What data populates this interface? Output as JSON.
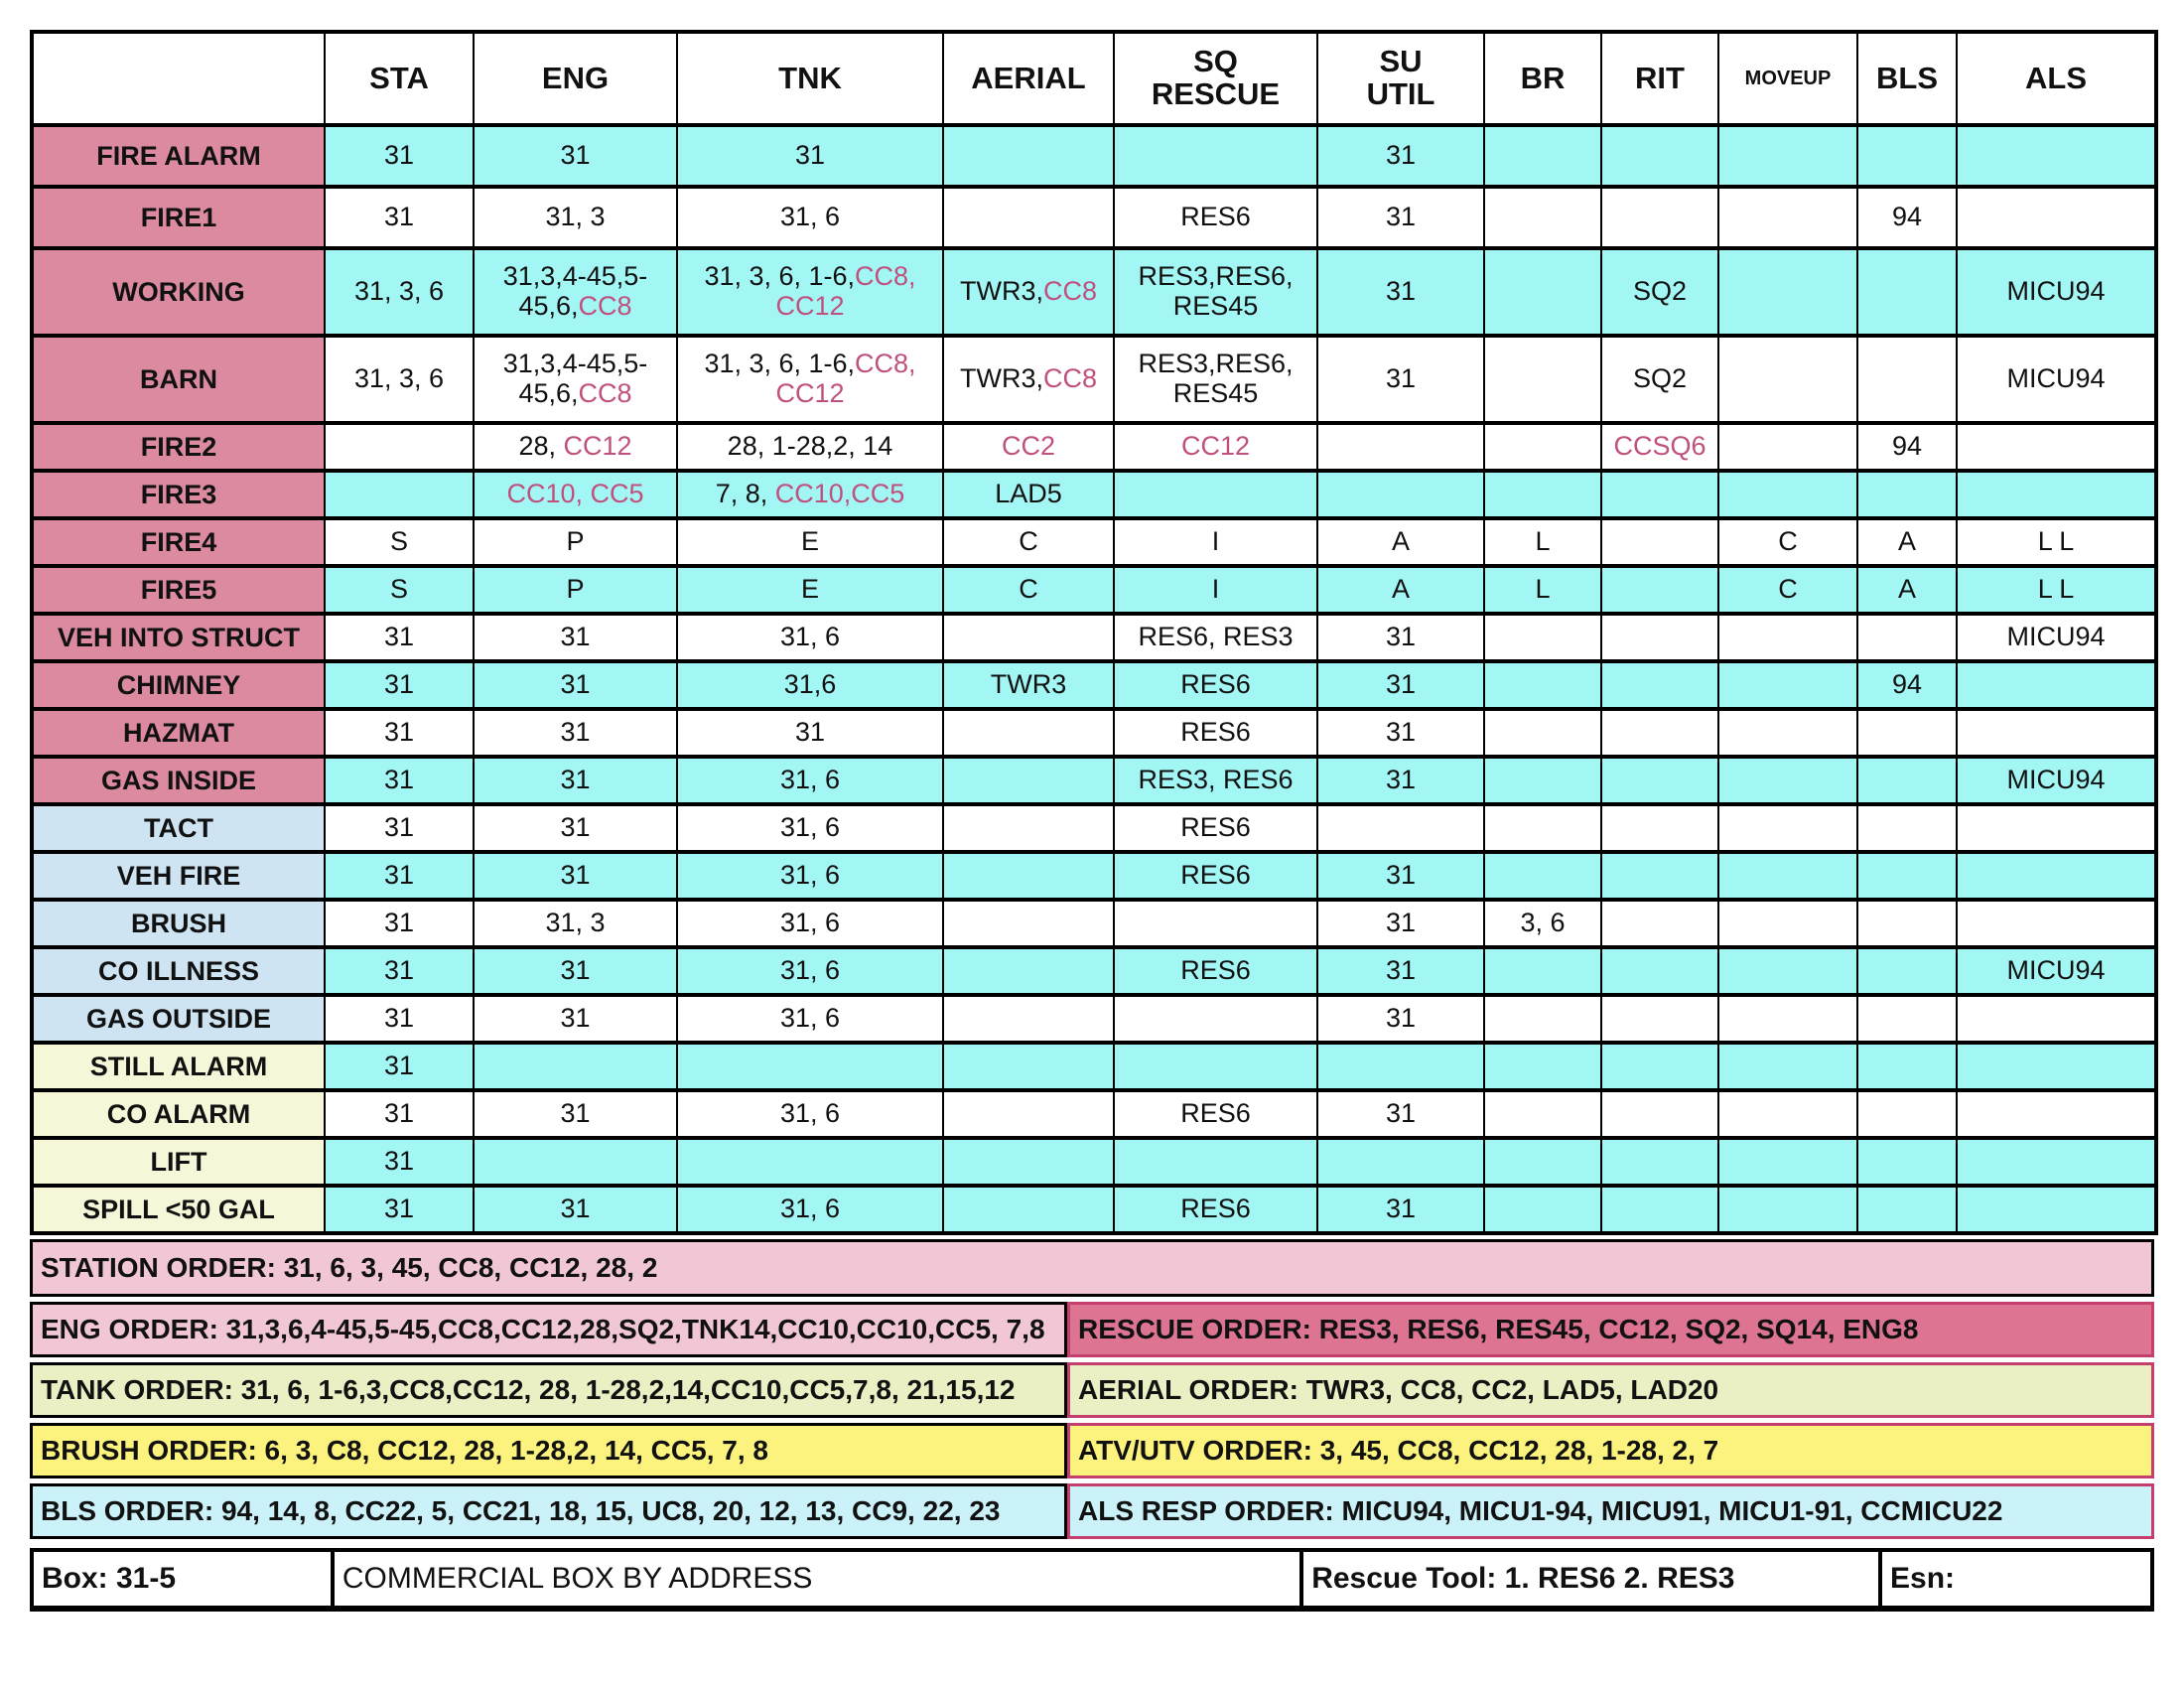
{
  "colors": {
    "cyan": "#a2f6f4",
    "white": "#ffffff",
    "pinkLabel": "#dc8aa0",
    "blueLabel": "#cfe4f3",
    "yellowLabel": "#f6f6d8",
    "pinkText": "#c0507e",
    "lightPink": "#f1c6d5",
    "darkPink": "#dc7492",
    "paleGreen": "#ebf0c4",
    "yellow": "#fbf37d",
    "paleCyan": "#ccf2f9",
    "crimsonBorder": "#c43e6e"
  },
  "table": {
    "columns": [
      {
        "id": "blank",
        "label": ""
      },
      {
        "id": "sta",
        "label": "STA"
      },
      {
        "id": "eng",
        "label": "ENG"
      },
      {
        "id": "tnk",
        "label": "TNK"
      },
      {
        "id": "aerial",
        "label": "AERIAL"
      },
      {
        "id": "sq-rescue",
        "label": "SQ\nRESCUE"
      },
      {
        "id": "su-util",
        "label": "SU\nUTIL"
      },
      {
        "id": "br",
        "label": "BR"
      },
      {
        "id": "rit",
        "label": "RIT"
      },
      {
        "id": "moveup",
        "label": "MOVEUP"
      },
      {
        "id": "bls",
        "label": "BLS"
      },
      {
        "id": "als",
        "label": "ALS"
      }
    ],
    "rows": [
      {
        "label": "FIRE ALARM",
        "labelBg": "pinkLabel",
        "bg": "cyan",
        "cells": [
          [
            [
              "31",
              0
            ]
          ],
          [
            [
              "31",
              0
            ]
          ],
          [
            [
              "31",
              0
            ]
          ],
          [],
          [],
          [
            [
              "31",
              0
            ]
          ],
          [],
          [],
          [],
          [],
          []
        ]
      },
      {
        "label": "FIRE1",
        "labelBg": "pinkLabel",
        "bg": "white",
        "cells": [
          [
            [
              "31",
              0
            ]
          ],
          [
            [
              "31, 3",
              0
            ]
          ],
          [
            [
              "31, 6",
              0
            ]
          ],
          [],
          [
            [
              "RES6",
              0
            ]
          ],
          [
            [
              "31",
              0
            ]
          ],
          [],
          [],
          [],
          [
            [
              "94",
              0
            ]
          ],
          []
        ]
      },
      {
        "label": "WORKING",
        "labelBg": "pinkLabel",
        "bg": "cyan",
        "cells": [
          [
            [
              "31, 3, 6",
              0
            ]
          ],
          [
            [
              "31,3,4-45,5-45,6,",
              0
            ],
            [
              "CC8",
              1
            ]
          ],
          [
            [
              "31, 3, 6, 1-6,",
              0
            ],
            [
              "CC8, CC12",
              1
            ]
          ],
          [
            [
              "TWR3,",
              0
            ],
            [
              "CC8",
              1
            ]
          ],
          [
            [
              "RES3,RES6, RES45",
              0
            ]
          ],
          [
            [
              "31",
              0
            ]
          ],
          [],
          [
            [
              "SQ2",
              0
            ]
          ],
          [],
          [],
          [
            [
              "MICU94",
              0
            ]
          ]
        ]
      },
      {
        "label": "BARN",
        "labelBg": "pinkLabel",
        "bg": "white",
        "cells": [
          [
            [
              "31, 3, 6",
              0
            ]
          ],
          [
            [
              "31,3,4-45,5-45,6,",
              0
            ],
            [
              "CC8",
              1
            ]
          ],
          [
            [
              "31, 3, 6, 1-6,",
              0
            ],
            [
              "CC8, CC12",
              1
            ]
          ],
          [
            [
              "TWR3,",
              0
            ],
            [
              "CC8",
              1
            ]
          ],
          [
            [
              "RES3,RES6, RES45",
              0
            ]
          ],
          [
            [
              "31",
              0
            ]
          ],
          [],
          [
            [
              "SQ2",
              0
            ]
          ],
          [],
          [],
          [
            [
              "MICU94",
              0
            ]
          ]
        ]
      },
      {
        "label": "FIRE2",
        "labelBg": "pinkLabel",
        "bg": "white",
        "cells": [
          [],
          [
            [
              "28, ",
              0
            ],
            [
              "CC12",
              1
            ]
          ],
          [
            [
              "28, 1-28,2, 14",
              0
            ]
          ],
          [
            [
              "CC2",
              1
            ]
          ],
          [
            [
              "CC12",
              1
            ]
          ],
          [],
          [],
          [
            [
              "CCSQ6",
              1
            ]
          ],
          [],
          [
            [
              "94",
              0
            ]
          ],
          []
        ]
      },
      {
        "label": "FIRE3",
        "labelBg": "pinkLabel",
        "bg": "cyan",
        "cells": [
          [],
          [
            [
              "CC10, CC5",
              1
            ]
          ],
          [
            [
              "7, 8, ",
              0
            ],
            [
              "CC10,CC5",
              1
            ]
          ],
          [
            [
              "LAD5",
              0
            ]
          ],
          [],
          [],
          [],
          [],
          [],
          [],
          []
        ]
      },
      {
        "label": "FIRE4",
        "labelBg": "pinkLabel",
        "bg": "white",
        "cells": [
          [
            [
              "S",
              0
            ]
          ],
          [
            [
              "P",
              0
            ]
          ],
          [
            [
              "E",
              0
            ]
          ],
          [
            [
              "C",
              0
            ]
          ],
          [
            [
              "I",
              0
            ]
          ],
          [
            [
              "A",
              0
            ]
          ],
          [
            [
              "L",
              0
            ]
          ],
          [],
          [
            [
              "C",
              0
            ]
          ],
          [
            [
              "A",
              0
            ]
          ],
          [
            [
              "L L",
              0
            ]
          ]
        ]
      },
      {
        "label": "FIRE5",
        "labelBg": "pinkLabel",
        "bg": "cyan",
        "cells": [
          [
            [
              "S",
              0
            ]
          ],
          [
            [
              "P",
              0
            ]
          ],
          [
            [
              "E",
              0
            ]
          ],
          [
            [
              "C",
              0
            ]
          ],
          [
            [
              "I",
              0
            ]
          ],
          [
            [
              "A",
              0
            ]
          ],
          [
            [
              "L",
              0
            ]
          ],
          [],
          [
            [
              "C",
              0
            ]
          ],
          [
            [
              "A",
              0
            ]
          ],
          [
            [
              "L L",
              0
            ]
          ]
        ]
      },
      {
        "label": "VEH INTO STRUCT",
        "labelBg": "pinkLabel",
        "bg": "white",
        "cells": [
          [
            [
              "31",
              0
            ]
          ],
          [
            [
              "31",
              0
            ]
          ],
          [
            [
              "31, 6",
              0
            ]
          ],
          [],
          [
            [
              "RES6, RES3",
              0
            ]
          ],
          [
            [
              "31",
              0
            ]
          ],
          [],
          [],
          [],
          [],
          [
            [
              "MICU94",
              0
            ]
          ]
        ]
      },
      {
        "label": "CHIMNEY",
        "labelBg": "pinkLabel",
        "bg": "cyan",
        "cells": [
          [
            [
              "31",
              0
            ]
          ],
          [
            [
              "31",
              0
            ]
          ],
          [
            [
              "31,6",
              0
            ]
          ],
          [
            [
              "TWR3",
              0
            ]
          ],
          [
            [
              "RES6",
              0
            ]
          ],
          [
            [
              "31",
              0
            ]
          ],
          [],
          [],
          [],
          [
            [
              "94",
              0
            ]
          ],
          []
        ]
      },
      {
        "label": "HAZMAT",
        "labelBg": "pinkLabel",
        "bg": "white",
        "cells": [
          [
            [
              "31",
              0
            ]
          ],
          [
            [
              "31",
              0
            ]
          ],
          [
            [
              "31",
              0
            ]
          ],
          [],
          [
            [
              "RES6",
              0
            ]
          ],
          [
            [
              "31",
              0
            ]
          ],
          [],
          [],
          [],
          [],
          []
        ]
      },
      {
        "label": "GAS INSIDE",
        "labelBg": "pinkLabel",
        "bg": "cyan",
        "cells": [
          [
            [
              "31",
              0
            ]
          ],
          [
            [
              "31",
              0
            ]
          ],
          [
            [
              "31, 6",
              0
            ]
          ],
          [],
          [
            [
              "RES3, RES6",
              0
            ]
          ],
          [
            [
              "31",
              0
            ]
          ],
          [],
          [],
          [],
          [],
          [
            [
              "MICU94",
              0
            ]
          ]
        ]
      },
      {
        "label": "TACT",
        "labelBg": "blueLabel",
        "bg": "white",
        "cells": [
          [
            [
              "31",
              0
            ]
          ],
          [
            [
              "31",
              0
            ]
          ],
          [
            [
              "31, 6",
              0
            ]
          ],
          [],
          [
            [
              "RES6",
              0
            ]
          ],
          [],
          [],
          [],
          [],
          [],
          []
        ]
      },
      {
        "label": "VEH FIRE",
        "labelBg": "blueLabel",
        "bg": "cyan",
        "cells": [
          [
            [
              "31",
              0
            ]
          ],
          [
            [
              "31",
              0
            ]
          ],
          [
            [
              "31, 6",
              0
            ]
          ],
          [],
          [
            [
              "RES6",
              0
            ]
          ],
          [
            [
              "31",
              0
            ]
          ],
          [],
          [],
          [],
          [],
          []
        ]
      },
      {
        "label": "BRUSH",
        "labelBg": "blueLabel",
        "bg": "white",
        "cells": [
          [
            [
              "31",
              0
            ]
          ],
          [
            [
              "31, 3",
              0
            ]
          ],
          [
            [
              "31, 6",
              0
            ]
          ],
          [],
          [],
          [
            [
              "31",
              0
            ]
          ],
          [
            [
              "3, 6",
              0
            ]
          ],
          [],
          [],
          [],
          []
        ]
      },
      {
        "label": "CO ILLNESS",
        "labelBg": "blueLabel",
        "bg": "cyan",
        "cells": [
          [
            [
              "31",
              0
            ]
          ],
          [
            [
              "31",
              0
            ]
          ],
          [
            [
              "31, 6",
              0
            ]
          ],
          [],
          [
            [
              "RES6",
              0
            ]
          ],
          [
            [
              "31",
              0
            ]
          ],
          [],
          [],
          [],
          [],
          [
            [
              "MICU94",
              0
            ]
          ]
        ]
      },
      {
        "label": "GAS OUTSIDE",
        "labelBg": "blueLabel",
        "bg": "white",
        "cells": [
          [
            [
              "31",
              0
            ]
          ],
          [
            [
              "31",
              0
            ]
          ],
          [
            [
              "31, 6",
              0
            ]
          ],
          [],
          [],
          [
            [
              "31",
              0
            ]
          ],
          [],
          [],
          [],
          [],
          []
        ]
      },
      {
        "label": "STILL ALARM",
        "labelBg": "yellowLabel",
        "bg": "cyan",
        "cells": [
          [
            [
              "31",
              0
            ]
          ],
          [],
          [],
          [],
          [],
          [],
          [],
          [],
          [],
          [],
          []
        ]
      },
      {
        "label": "CO ALARM",
        "labelBg": "yellowLabel",
        "bg": "white",
        "cells": [
          [
            [
              "31",
              0
            ]
          ],
          [
            [
              "31",
              0
            ]
          ],
          [
            [
              "31, 6",
              0
            ]
          ],
          [],
          [
            [
              "RES6",
              0
            ]
          ],
          [
            [
              "31",
              0
            ]
          ],
          [],
          [],
          [],
          [],
          []
        ]
      },
      {
        "label": "LIFT",
        "labelBg": "yellowLabel",
        "bg": "cyan",
        "cells": [
          [
            [
              "31",
              0
            ]
          ],
          [],
          [],
          [],
          [],
          [],
          [],
          [],
          [],
          [],
          []
        ]
      },
      {
        "label": "SPILL <50 GAL",
        "labelBg": "yellowLabel",
        "bg": "cyan",
        "cells": [
          [
            [
              "31",
              0
            ]
          ],
          [
            [
              "31",
              0
            ]
          ],
          [
            [
              "31, 6",
              0
            ]
          ],
          [],
          [
            [
              "RES6",
              0
            ]
          ],
          [
            [
              "31",
              0
            ]
          ],
          [],
          [],
          [],
          [],
          []
        ]
      }
    ]
  },
  "orders": {
    "station": "STATION ORDER: 31, 6, 3, 45, CC8, CC12, 28, 2",
    "pairs": [
      {
        "left": {
          "text": "ENG ORDER: 31,3,6,4-45,5-45,CC8,CC12,28,SQ2,TNK14,CC10,CC10,CC5, 7,8",
          "bg": "lightPink"
        },
        "right": {
          "text": "RESCUE ORDER: RES3, RES6, RES45, CC12, SQ2, SQ14, ENG8",
          "bg": "darkPink"
        }
      },
      {
        "left": {
          "text": "TANK ORDER: 31, 6, 1-6,3,CC8,CC12, 28, 1-28,2,14,CC10,CC5,7,8, 21,15,12",
          "bg": "paleGreen"
        },
        "right": {
          "text": "AERIAL ORDER: TWR3, CC8, CC2, LAD5, LAD20",
          "bg": "paleGreen"
        }
      },
      {
        "left": {
          "text": "BRUSH ORDER: 6, 3, C8, CC12, 28, 1-28,2, 14, CC5, 7, 8",
          "bg": "yellow"
        },
        "right": {
          "text": "ATV/UTV ORDER: 3, 45, CC8, CC12, 28, 1-28, 2, 7",
          "bg": "yellow"
        }
      },
      {
        "left": {
          "text": "BLS ORDER: 94, 14, 8, CC22, 5, CC21, 18, 15, UC8, 20, 12, 13, CC9, 22, 23",
          "bg": "paleCyan"
        },
        "right": {
          "text": "ALS RESP ORDER: MICU94, MICU1-94, MICU91, MICU1-91, CCMICU22",
          "bg": "paleCyan"
        }
      }
    ]
  },
  "footer": {
    "box": "Box: 31-5",
    "commercial": "COMMERCIAL BOX BY ADDRESS",
    "rescue_tool": "Rescue Tool: 1. RES6  2. RES3",
    "esn": "Esn:"
  }
}
